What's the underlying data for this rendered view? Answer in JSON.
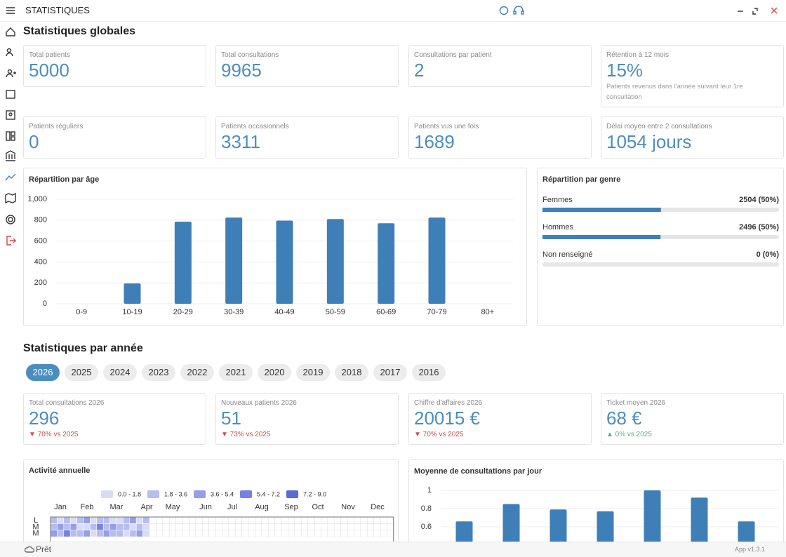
{
  "header": {
    "title": "STATISTIQUES"
  },
  "global": {
    "title": "Statistiques globales",
    "cards": [
      {
        "label": "Total patients",
        "value": "5000"
      },
      {
        "label": "Total consultations",
        "value": "9965"
      },
      {
        "label": "Consultations par patient",
        "value": "2"
      },
      {
        "label": "Rétention à 12 mois",
        "value": "15%",
        "note": "Patients revenus dans l'année suivant leur 1re consultation"
      },
      {
        "label": "Patients réguliers",
        "value": "0"
      },
      {
        "label": "Patients occasionnels",
        "value": "3311"
      },
      {
        "label": "Patients vus une fois",
        "value": "1689"
      },
      {
        "label": "Délai moyen entre 2 consultations",
        "value": "1054 jours"
      }
    ]
  },
  "chart_data": [
    {
      "type": "bar",
      "title": "Répartition par âge",
      "categories": [
        "0-9",
        "10-19",
        "20-29",
        "30-39",
        "40-49",
        "50-59",
        "60-69",
        "70-79",
        "80+"
      ],
      "values": [
        0,
        195,
        785,
        825,
        795,
        810,
        770,
        825,
        0
      ],
      "color": "#3f7fb8",
      "ylim": [
        0,
        1000
      ],
      "yticks": [
        0,
        200,
        400,
        600,
        800,
        {
          "value": 1000,
          "label": "1,000"
        }
      ],
      "grid": true
    },
    {
      "type": "progress",
      "title": "Répartition par genre",
      "categories": [
        "Femmes",
        "Hommes",
        "Non renseigné"
      ],
      "values": [
        2504,
        2496,
        0
      ],
      "value_labels": [
        "2504 (50%)",
        "2496 (50%)",
        "0 (0%)"
      ],
      "xlim": [
        0,
        5000
      ],
      "color": "#3f7fb8"
    },
    {
      "type": "bar",
      "title": "Moyenne de consultations par jour",
      "categories": [
        null,
        null,
        null,
        null,
        null,
        null,
        null
      ],
      "values": [
        0.66,
        0.85,
        0.79,
        0.77,
        1,
        0.92,
        0.66
      ],
      "color": "#3f7fb8",
      "ylim": [
        0,
        1
      ],
      "yticks": [
        0.6,
        0.8,
        1
      ],
      "grid": true
    },
    {
      "type": "heatmap",
      "title": "Activité annuelle",
      "months": [
        "Jan",
        "Feb",
        "Mar",
        "Apr",
        "May",
        "Jun",
        "Jul",
        "Aug",
        "Sep",
        "Oct",
        "Nov",
        "Dec"
      ],
      "days": [
        "L",
        "M",
        "M"
      ],
      "bins": [
        0,
        1.8,
        3.6,
        5.4,
        7.2,
        9.0
      ],
      "legend": [
        {
          "label": "0.0 - 1.8",
          "color": "#d9dcf5"
        },
        {
          "label": "1.8 - 3.6",
          "color": "#b7bdef"
        },
        {
          "label": "3.6 - 5.4",
          "color": "#959ee6"
        },
        {
          "label": "5.4 - 7.2",
          "color": "#7582df"
        },
        {
          "label": "7.2 - 9.0",
          "color": "#5a6ad6"
        }
      ],
      "values": [
        [
          2,
          1,
          3,
          0,
          2,
          4,
          1,
          2,
          3,
          0,
          1,
          2,
          5,
          1,
          2
        ],
        [
          3,
          5,
          2,
          4,
          1,
          0,
          3,
          6,
          2,
          4,
          2,
          3,
          1,
          2,
          0
        ],
        [
          4,
          2,
          6,
          3,
          2,
          5,
          1,
          3,
          4,
          2,
          3,
          1,
          2,
          4,
          1
        ]
      ]
    }
  ],
  "yearly": {
    "title": "Statistiques par année",
    "years": [
      "2026",
      "2025",
      "2024",
      "2023",
      "2022",
      "2021",
      "2020",
      "2019",
      "2018",
      "2017",
      "2016"
    ],
    "selected_index": 0,
    "cards": [
      {
        "label": "Total consultations 2026",
        "value": "296",
        "delta": "▼ 70% vs 2025",
        "trend": "down"
      },
      {
        "label": "Nouveaux patients 2026",
        "value": "51",
        "delta": "▼ 73% vs 2025",
        "trend": "down"
      },
      {
        "label": "Chiffre d'affaires 2026",
        "value": "20015 €",
        "delta": "▼ 70% vs 2025",
        "trend": "down"
      },
      {
        "label": "Ticket moyen 2026",
        "value": "68 €",
        "delta": "▲ 0% vs 2025",
        "trend": "up"
      }
    ]
  },
  "footer": {
    "status": "Prêt",
    "version": "App v1.3.1"
  }
}
